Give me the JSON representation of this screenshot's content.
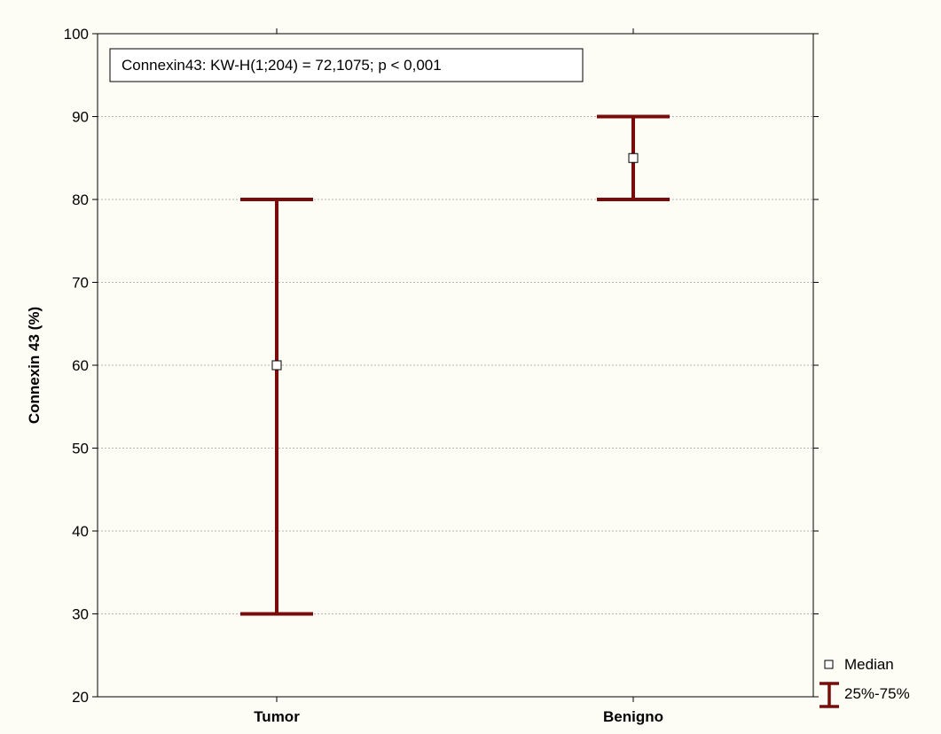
{
  "chart_data": {
    "type": "median-iqr",
    "title": "",
    "xlabel": "",
    "ylabel": "Connexin 43 (%)",
    "ylim": [
      20,
      100
    ],
    "yticks": [
      20,
      30,
      40,
      50,
      60,
      70,
      80,
      90,
      100
    ],
    "grid": true,
    "categories": [
      "Tumor",
      "Benigno"
    ],
    "median": [
      60,
      85
    ],
    "q25": [
      30,
      80
    ],
    "q75": [
      80,
      90
    ],
    "annotation": "Connexin43:  KW-H(1;204) = 72,1075; p < 0,001",
    "legend": {
      "position": "bottom-right",
      "entries": [
        "Median",
        "25%-75%"
      ]
    },
    "colors": {
      "whisker": "#7a0b0b",
      "median_fill": "#ffffff",
      "median_stroke": "#000000",
      "grid": "#b5b5b5",
      "background": "#fdfcf5"
    }
  }
}
